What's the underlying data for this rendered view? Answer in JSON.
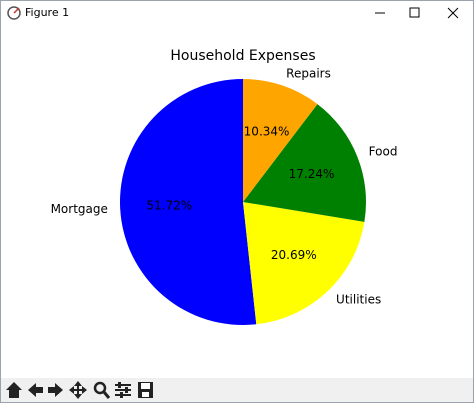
{
  "window": {
    "title": "Figure 1"
  },
  "chart_data": {
    "type": "pie",
    "title": "Household Expenses",
    "categories": [
      "Mortgage",
      "Utilities",
      "Food",
      "Repairs"
    ],
    "values": [
      51.72,
      20.69,
      17.24,
      10.34
    ],
    "value_labels": [
      "51.72%",
      "20.69%",
      "17.24%",
      "10.34%"
    ],
    "colors": [
      "#0000ff",
      "#ffff00",
      "#008000",
      "#ffa500"
    ]
  }
}
